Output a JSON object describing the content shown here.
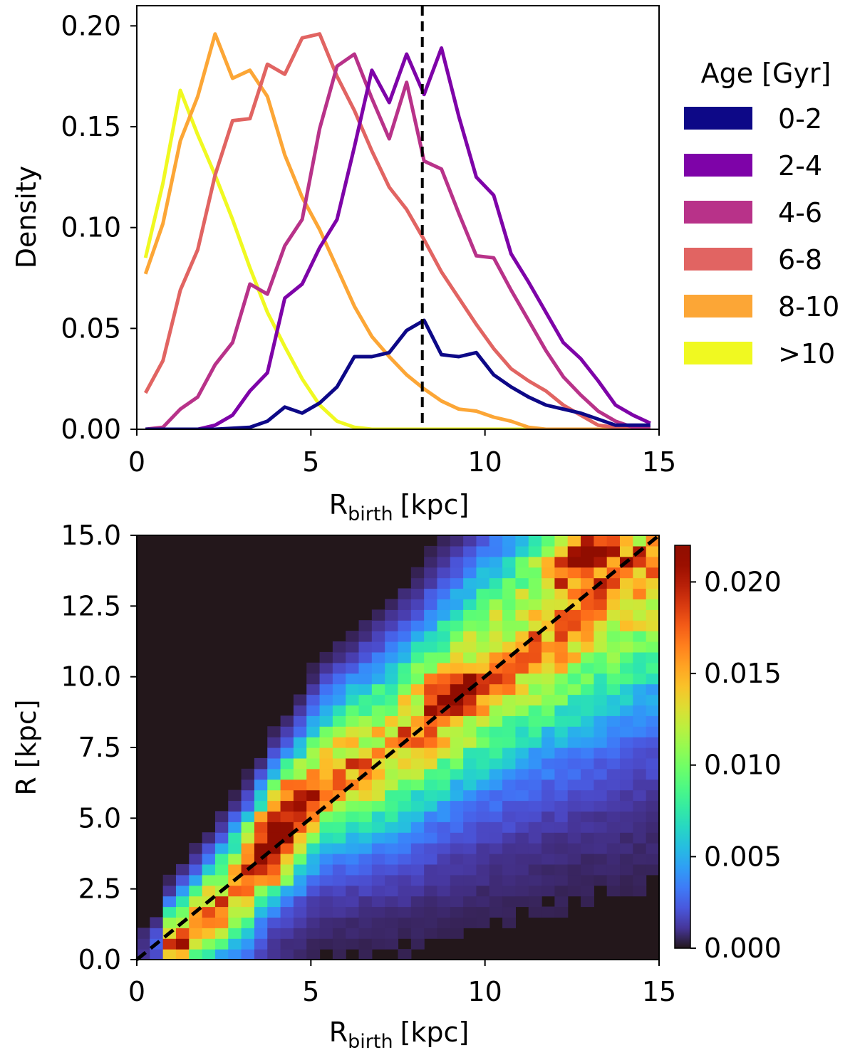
{
  "chart_data": [
    {
      "type": "line",
      "xlabel_main": "R",
      "xlabel_sub": "birth",
      "xlabel_unit": "[kpc]",
      "ylabel": "Density",
      "xlim": [
        0,
        15
      ],
      "ylim": [
        0,
        0.21
      ],
      "xticks": [
        "0",
        "5",
        "10",
        "15"
      ],
      "yticks": [
        "0.00",
        "0.05",
        "0.10",
        "0.15",
        "0.20"
      ],
      "vline_x": 8.2,
      "legend_title": "Age [Gyr]",
      "x": [
        0.25,
        0.75,
        1.25,
        1.75,
        2.25,
        2.75,
        3.25,
        3.75,
        4.25,
        4.75,
        5.25,
        5.75,
        6.25,
        6.75,
        7.25,
        7.75,
        8.25,
        8.75,
        9.25,
        9.75,
        10.25,
        10.75,
        11.25,
        11.75,
        12.25,
        12.75,
        13.25,
        13.75,
        14.25,
        14.75
      ],
      "series": [
        {
          "name": "0-2",
          "color": "#0d0887",
          "values": [
            0.0,
            0.0,
            0.0,
            0.0,
            0.0,
            0.0005,
            0.001,
            0.004,
            0.011,
            0.008,
            0.013,
            0.021,
            0.036,
            0.036,
            0.038,
            0.049,
            0.054,
            0.037,
            0.036,
            0.038,
            0.027,
            0.021,
            0.016,
            0.012,
            0.01,
            0.008,
            0.005,
            0.002,
            0.002,
            0.002
          ]
        },
        {
          "name": "2-4",
          "color": "#7e03a8",
          "values": [
            0.0,
            0.0,
            0.0,
            0.0,
            0.002,
            0.007,
            0.019,
            0.028,
            0.065,
            0.072,
            0.09,
            0.104,
            0.14,
            0.178,
            0.162,
            0.186,
            0.166,
            0.189,
            0.155,
            0.125,
            0.116,
            0.087,
            0.073,
            0.058,
            0.043,
            0.035,
            0.024,
            0.012,
            0.007,
            0.003
          ]
        },
        {
          "name": "4-6",
          "color": "#b83289",
          "values": [
            0.0,
            0.001,
            0.01,
            0.016,
            0.032,
            0.043,
            0.072,
            0.067,
            0.091,
            0.104,
            0.149,
            0.18,
            0.186,
            0.164,
            0.144,
            0.172,
            0.133,
            0.129,
            0.107,
            0.086,
            0.085,
            0.069,
            0.054,
            0.039,
            0.026,
            0.017,
            0.009,
            0.004,
            0.001,
            0.001
          ]
        },
        {
          "name": "6-8",
          "color": "#e16462",
          "values": [
            0.018,
            0.034,
            0.069,
            0.089,
            0.126,
            0.153,
            0.154,
            0.181,
            0.176,
            0.194,
            0.196,
            0.175,
            0.158,
            0.138,
            0.12,
            0.109,
            0.094,
            0.078,
            0.065,
            0.052,
            0.04,
            0.03,
            0.024,
            0.019,
            0.012,
            0.007,
            0.002,
            0.001,
            0.0,
            0.0
          ]
        },
        {
          "name": "8-10",
          "color": "#fca636",
          "values": [
            0.077,
            0.102,
            0.143,
            0.165,
            0.196,
            0.174,
            0.178,
            0.165,
            0.136,
            0.115,
            0.099,
            0.08,
            0.061,
            0.046,
            0.036,
            0.027,
            0.02,
            0.014,
            0.01,
            0.009,
            0.006,
            0.004,
            0.001,
            0.0,
            0.0,
            0.0,
            0.0,
            0.0,
            0.0,
            0.0
          ]
        },
        {
          "name": ">10",
          "color": "#f0f921",
          "values": [
            0.085,
            0.122,
            0.168,
            0.146,
            0.126,
            0.104,
            0.08,
            0.058,
            0.041,
            0.025,
            0.012,
            0.004,
            0.001,
            0.0,
            0.0,
            0.0,
            0.0,
            0.0,
            0.0,
            0.0,
            0.0,
            0.0,
            0.0,
            0.0,
            0.0,
            0.0,
            0.0,
            0.0,
            0.0,
            0.0
          ]
        }
      ]
    },
    {
      "type": "heatmap",
      "xlabel_main": "R",
      "xlabel_sub": "birth",
      "xlabel_unit": "[kpc]",
      "ylabel": "R [kpc]",
      "xlim": [
        0,
        15
      ],
      "ylim": [
        0,
        15
      ],
      "bins": 40,
      "xticks": [
        "0",
        "5",
        "10",
        "15"
      ],
      "yticks": [
        "0.0",
        "2.5",
        "5.0",
        "7.5",
        "10.0",
        "12.5",
        "15.0"
      ],
      "colorbar_range": [
        0,
        0.022
      ],
      "colorbar_ticks": [
        "0.000",
        "0.005",
        "0.010",
        "0.015",
        "0.020"
      ],
      "colorbar_tick_values": [
        0,
        0.005,
        0.01,
        0.015,
        0.02
      ],
      "ridge": [
        [
          0.6,
          0.25
        ],
        [
          3.3,
          3.2
        ],
        [
          3.9,
          4.5
        ],
        [
          5.3,
          6.6
        ],
        [
          7.5,
          8.0
        ],
        [
          9.5,
          10.0
        ],
        [
          12.0,
          12.3
        ],
        [
          14.8,
          14.8
        ]
      ],
      "hotspots": [
        [
          4.0,
          4.5,
          0.022
        ],
        [
          3.8,
          3.3,
          0.019
        ],
        [
          4.4,
          6.0,
          0.016
        ],
        [
          9.0,
          9.6,
          0.017
        ],
        [
          12.3,
          13.9,
          0.018
        ],
        [
          13.2,
          14.5,
          0.019
        ],
        [
          1.2,
          0.6,
          0.014
        ],
        [
          2.2,
          1.0,
          0.013
        ]
      ],
      "diagonal_line": [
        [
          0,
          0
        ],
        [
          15,
          15
        ]
      ]
    }
  ]
}
